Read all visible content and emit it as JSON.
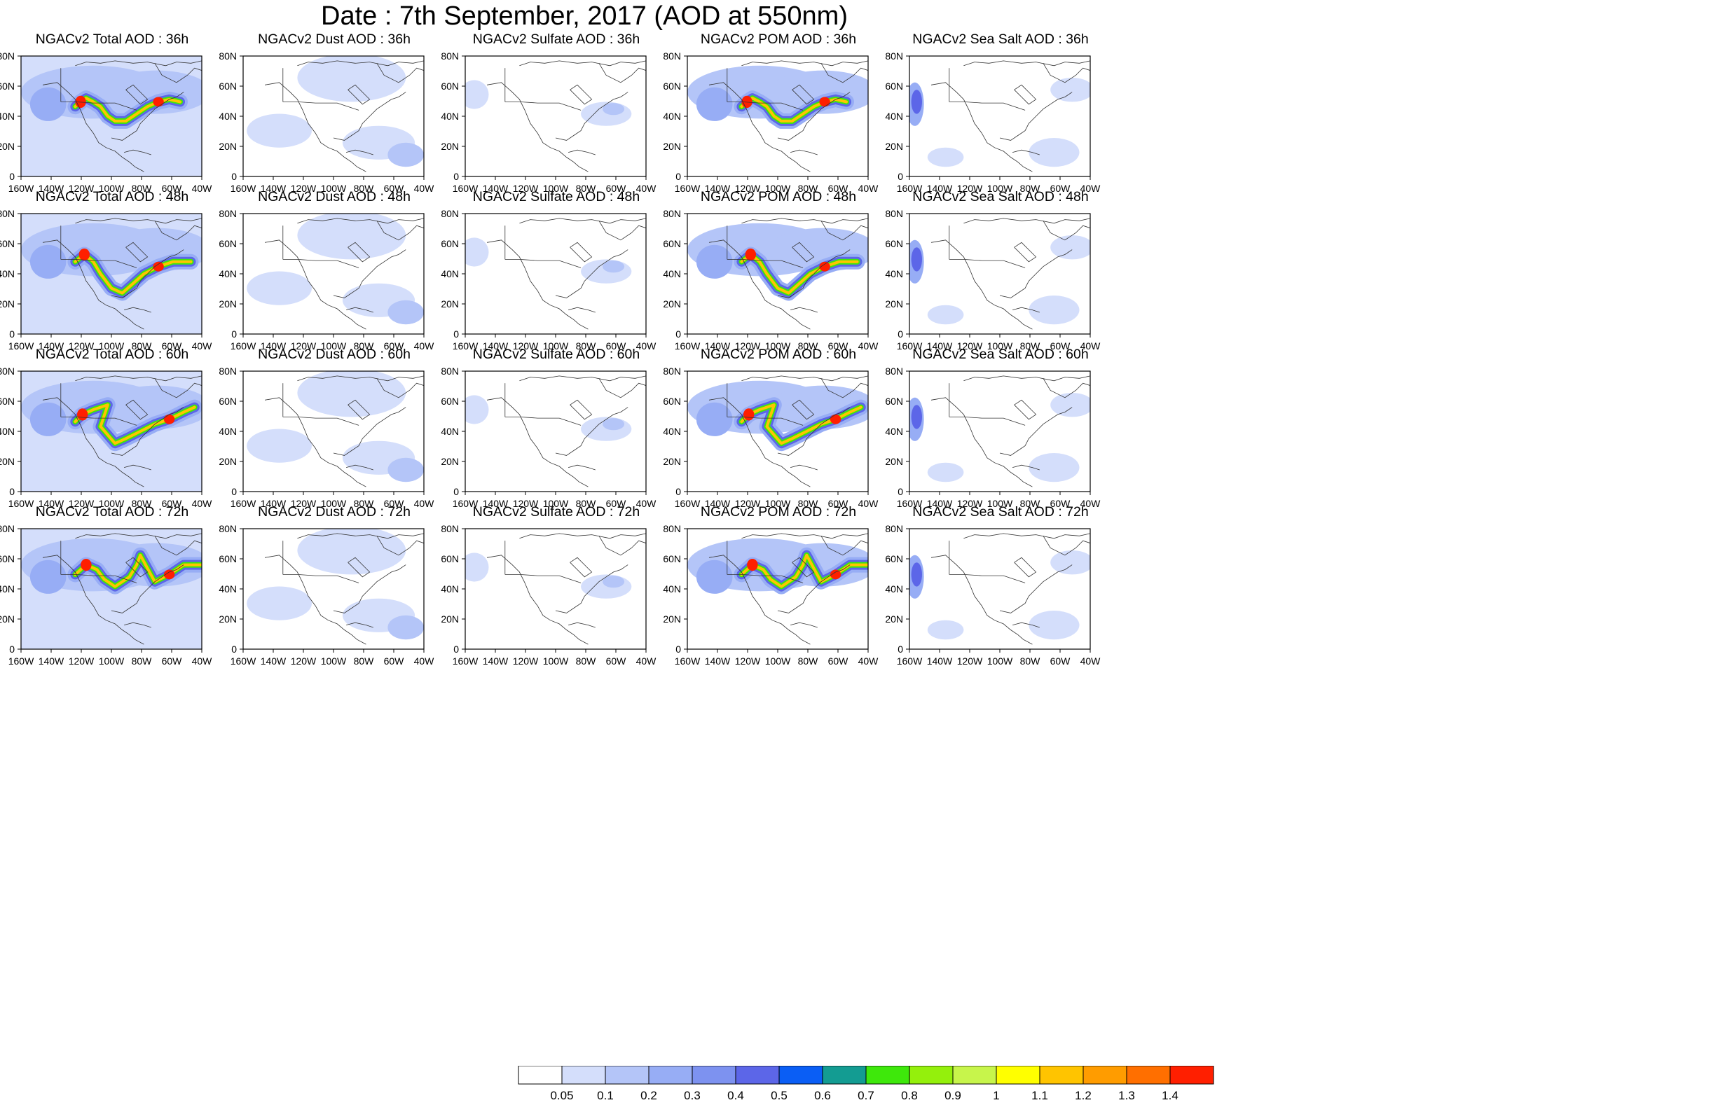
{
  "title": "Date : 7th September, 2017 (AOD at 550nm)",
  "lon_labels": [
    "160W",
    "140W",
    "120W",
    "100W",
    "80W",
    "60W",
    "40W"
  ],
  "lat_labels": [
    "0",
    "20N",
    "40N",
    "60N",
    "80N"
  ],
  "rows": [
    [
      "NGACv2 Total AOD : 36h",
      "NGACv2 Dust AOD : 36h",
      "NGACv2 Sulfate AOD : 36h",
      "NGACv2 POM AOD : 36h",
      "NGACv2 Sea Salt AOD : 36h"
    ],
    [
      "NGACv2 Total AOD : 48h",
      "NGACv2 Dust AOD : 48h",
      "NGACv2 Sulfate AOD : 48h",
      "NGACv2 POM AOD : 48h",
      "NGACv2 Sea Salt AOD : 48h"
    ],
    [
      "NGACv2 Total AOD : 60h",
      "NGACv2 Dust AOD : 60h",
      "NGACv2 Sulfate AOD : 60h",
      "NGACv2 POM AOD : 60h",
      "NGACv2 Sea Salt AOD : 60h"
    ],
    [
      "NGACv2 Total AOD : 72h",
      "NGACv2 Dust AOD : 72h",
      "NGACv2 Sulfate AOD : 72h",
      "NGACv2 POM AOD : 72h",
      "NGACv2 Sea Salt  AOD : 72h"
    ]
  ],
  "colorbar": {
    "labels": [
      "0.05",
      "0.1",
      "0.2",
      "0.3",
      "0.4",
      "0.5",
      "0.6",
      "0.7",
      "0.8",
      "0.9",
      "1",
      "1.1",
      "1.2",
      "1.3",
      "1.4"
    ],
    "colors": [
      "#ffffff",
      "#d4defb",
      "#b4c5f8",
      "#97adf5",
      "#7d92f0",
      "#5c66e8",
      "#0a5ef5",
      "#139c92",
      "#3ee80b",
      "#94f00c",
      "#c7f54b",
      "#ffff00",
      "#ffc400",
      "#ff9c00",
      "#ff6f00",
      "#ff1f00"
    ]
  },
  "legend_placement": "bottom"
}
